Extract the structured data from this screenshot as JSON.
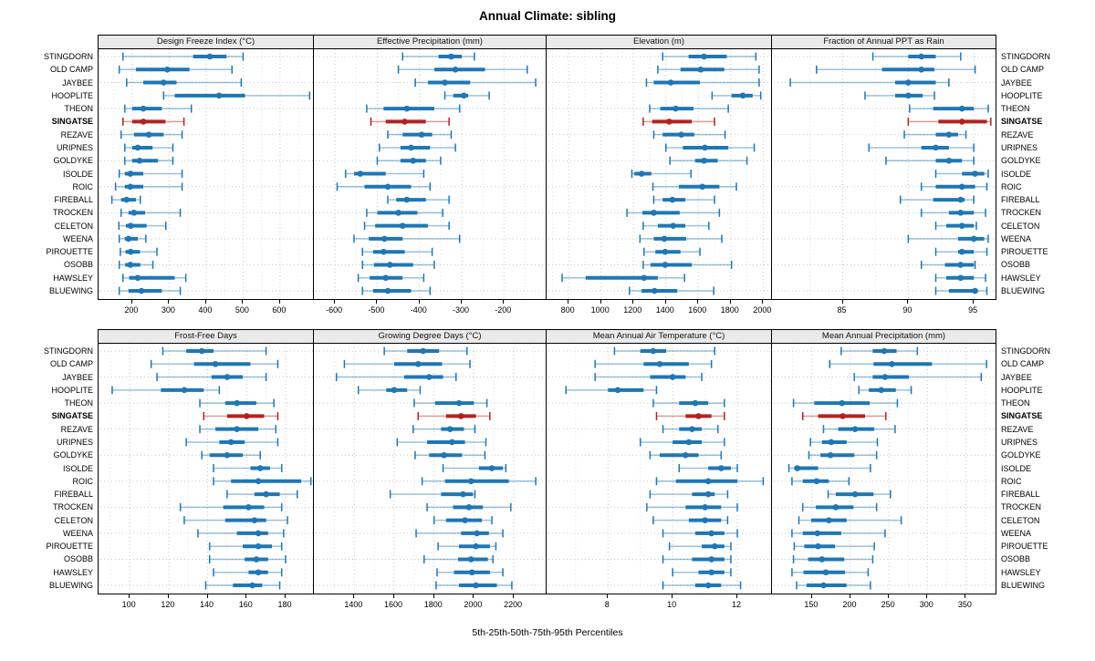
{
  "title": "Annual Climate: sibling",
  "footer": "5th-25th-50th-75th-95th Percentiles",
  "colors": {
    "series": "#1f77b4",
    "highlight": "#b22222",
    "strip_bg": "#eaeaea",
    "grid_major": "#c9c9c9",
    "grid_minor": "#e2e2e2",
    "row_guide": "#c9c9c9"
  },
  "chart_data": {
    "type": "percentile-dotplot",
    "title": "Annual Climate: sibling",
    "caption": "5th-25th-50th-75th-95th Percentiles",
    "percentiles": [
      5,
      25,
      50,
      75,
      95
    ],
    "legend_position": "none",
    "grid": "dotted",
    "sites": [
      "STINGDORN",
      "OLD CAMP",
      "JAYBEE",
      "HOOPLITE",
      "THEON",
      "SINGATSE",
      "REZAVE",
      "URIPNES",
      "GOLDYKE",
      "ISOLDE",
      "ROIC",
      "FIREBALL",
      "TROCKEN",
      "CELETON",
      "WEENA",
      "PIROUETTE",
      "OSOBB",
      "HAWSLEY",
      "BLUEWING"
    ],
    "highlight_site": "SINGATSE",
    "panels": [
      {
        "title": "Design Freeze Index (°C)",
        "xlim": [
          109,
          694
        ],
        "ticks": [
          200,
          300,
          400,
          500,
          600
        ],
        "values": [
          [
            175,
            365,
            410,
            455,
            500
          ],
          [
            165,
            210,
            295,
            355,
            470
          ],
          [
            185,
            230,
            285,
            320,
            495
          ],
          [
            285,
            315,
            435,
            505,
            680
          ],
          [
            180,
            200,
            230,
            280,
            360
          ],
          [
            175,
            200,
            230,
            290,
            340
          ],
          [
            170,
            205,
            245,
            285,
            335
          ],
          [
            180,
            200,
            215,
            255,
            310
          ],
          [
            180,
            200,
            220,
            270,
            310
          ],
          [
            165,
            180,
            195,
            230,
            335
          ],
          [
            155,
            180,
            195,
            230,
            335
          ],
          [
            145,
            170,
            185,
            210,
            222
          ],
          [
            170,
            190,
            205,
            235,
            330
          ],
          [
            164,
            183,
            196,
            239,
            291
          ],
          [
            165,
            180,
            190,
            215,
            237
          ],
          [
            168,
            182,
            196,
            221,
            267
          ],
          [
            165,
            181,
            195,
            222,
            256
          ],
          [
            175,
            192,
            215,
            315,
            345
          ],
          [
            165,
            190,
            225,
            280,
            330
          ]
        ]
      },
      {
        "title": "Effective Precipitation (mm)",
        "xlim": [
          -650,
          -97
        ],
        "ticks": [
          -600,
          -500,
          -400,
          -300,
          -200
        ],
        "values": [
          [
            -440,
            -355,
            -325,
            -300,
            -270
          ],
          [
            -450,
            -365,
            -315,
            -245,
            -145
          ],
          [
            -410,
            -380,
            -340,
            -280,
            -125
          ],
          [
            -340,
            -320,
            -295,
            -285,
            -235
          ],
          [
            -525,
            -485,
            -430,
            -365,
            -305
          ],
          [
            -515,
            -480,
            -435,
            -385,
            -330
          ],
          [
            -475,
            -440,
            -395,
            -370,
            -325
          ],
          [
            -495,
            -445,
            -420,
            -375,
            -315
          ],
          [
            -500,
            -445,
            -415,
            -385,
            -350
          ],
          [
            -575,
            -555,
            -540,
            -480,
            -390
          ],
          [
            -595,
            -530,
            -475,
            -420,
            -375
          ],
          [
            -475,
            -455,
            -430,
            -385,
            -330
          ],
          [
            -525,
            -500,
            -450,
            -405,
            -345
          ],
          [
            -530,
            -505,
            -440,
            -380,
            -330
          ],
          [
            -555,
            -520,
            -483,
            -440,
            -305
          ],
          [
            -535,
            -510,
            -485,
            -435,
            -370
          ],
          [
            -535,
            -508,
            -470,
            -415,
            -365
          ],
          [
            -545,
            -518,
            -480,
            -440,
            -390
          ],
          [
            -535,
            -510,
            -475,
            -420,
            -375
          ]
        ]
      },
      {
        "title": "Elevation (m)",
        "xlim": [
          664,
          2060
        ],
        "ticks": [
          800,
          1000,
          1200,
          1400,
          1600,
          1800,
          2000
        ],
        "values": [
          [
            1380,
            1540,
            1635,
            1775,
            1955
          ],
          [
            1350,
            1490,
            1615,
            1760,
            1975
          ],
          [
            1280,
            1325,
            1430,
            1610,
            1975
          ],
          [
            1685,
            1805,
            1875,
            1935,
            1985
          ],
          [
            1300,
            1365,
            1460,
            1570,
            1785
          ],
          [
            1260,
            1315,
            1420,
            1560,
            1700
          ],
          [
            1325,
            1380,
            1495,
            1575,
            1765
          ],
          [
            1400,
            1505,
            1640,
            1785,
            1945
          ],
          [
            1425,
            1580,
            1635,
            1720,
            1900
          ],
          [
            1190,
            1205,
            1250,
            1310,
            1555
          ],
          [
            1320,
            1480,
            1625,
            1730,
            1835
          ],
          [
            1325,
            1380,
            1440,
            1520,
            1700
          ],
          [
            1160,
            1255,
            1325,
            1485,
            1730
          ],
          [
            1260,
            1350,
            1445,
            1520,
            1665
          ],
          [
            1240,
            1325,
            1390,
            1525,
            1745
          ],
          [
            1265,
            1335,
            1395,
            1490,
            1610
          ],
          [
            1260,
            1305,
            1395,
            1560,
            1805
          ],
          [
            760,
            905,
            1265,
            1350,
            1515
          ],
          [
            1175,
            1250,
            1330,
            1470,
            1695
          ]
        ]
      },
      {
        "title": "Fraction of Annual PPT as Rain",
        "xlim": [
          79.6,
          96.8
        ],
        "ticks": [
          85,
          90,
          95
        ],
        "values": [
          [
            87.3,
            90.0,
            91.0,
            92.1,
            94.0
          ],
          [
            83.0,
            88.0,
            91.0,
            92.0,
            95.1
          ],
          [
            81.0,
            89.0,
            90.0,
            92.1,
            93.1
          ],
          [
            86.7,
            89.0,
            90.0,
            91.1,
            92.0
          ],
          [
            90.1,
            91.9,
            94.1,
            95.0,
            96.1
          ],
          [
            90.0,
            92.3,
            94.1,
            96.0,
            96.3
          ],
          [
            89.7,
            92.1,
            93.1,
            93.8,
            94.4
          ],
          [
            87.0,
            91.0,
            92.1,
            93.1,
            95.0
          ],
          [
            88.3,
            92.1,
            93.1,
            94.1,
            95.0
          ],
          [
            92.1,
            94.1,
            95.1,
            95.8,
            96.1
          ],
          [
            91.0,
            92.1,
            94.1,
            95.1,
            96.0
          ],
          [
            89.4,
            91.9,
            94.0,
            94.3,
            95.0
          ],
          [
            91.0,
            93.1,
            94.0,
            95.0,
            95.9
          ],
          [
            92.1,
            92.9,
            94.1,
            95.0,
            95.2
          ],
          [
            90.0,
            93.8,
            95.0,
            95.8,
            96.1
          ],
          [
            92.1,
            93.8,
            94.1,
            95.0,
            96.0
          ],
          [
            91.0,
            92.8,
            94.0,
            95.0,
            95.1
          ],
          [
            92.1,
            92.9,
            94.0,
            95.0,
            95.9
          ],
          [
            92.1,
            93.1,
            95.1,
            95.2,
            96.0
          ]
        ]
      },
      {
        "title": "Frost-Free Days",
        "xlim": [
          84,
          195
        ],
        "ticks": [
          100,
          120,
          140,
          160,
          180
        ],
        "values": [
          [
            117,
            129,
            137,
            143,
            170
          ],
          [
            111,
            133,
            144,
            162,
            176
          ],
          [
            114,
            142,
            150,
            158,
            170
          ],
          [
            91,
            116,
            128,
            138,
            146
          ],
          [
            136,
            149,
            155,
            165,
            174
          ],
          [
            138,
            150,
            160,
            169,
            176
          ],
          [
            136,
            144,
            155,
            166,
            175
          ],
          [
            129,
            146,
            152,
            159,
            176
          ],
          [
            137,
            141,
            150,
            158,
            167
          ],
          [
            143,
            162,
            167,
            172,
            178
          ],
          [
            143,
            152,
            166,
            188,
            193
          ],
          [
            150,
            164,
            170,
            177,
            186
          ],
          [
            126,
            148,
            161,
            169,
            178
          ],
          [
            128,
            149,
            164,
            170,
            181
          ],
          [
            135,
            155,
            166,
            171,
            179
          ],
          [
            141,
            158,
            166,
            173,
            178
          ],
          [
            141,
            159,
            165,
            171,
            180
          ],
          [
            143,
            161,
            166,
            171,
            178
          ],
          [
            139,
            153,
            163,
            168,
            177
          ]
        ]
      },
      {
        "title": "Growing Degree Days (°C)",
        "xlim": [
          1197,
          2369
        ],
        "ticks": [
          1400,
          1600,
          1800,
          2000,
          2200
        ],
        "values": [
          [
            1550,
            1665,
            1745,
            1825,
            1965
          ],
          [
            1350,
            1600,
            1720,
            1840,
            1980
          ],
          [
            1310,
            1650,
            1775,
            1845,
            1910
          ],
          [
            1420,
            1560,
            1600,
            1665,
            1730
          ],
          [
            1700,
            1805,
            1925,
            2000,
            2065
          ],
          [
            1720,
            1860,
            1935,
            2010,
            2080
          ],
          [
            1695,
            1835,
            1880,
            1950,
            2005
          ],
          [
            1615,
            1765,
            1890,
            1955,
            2060
          ],
          [
            1705,
            1775,
            1850,
            1940,
            2055
          ],
          [
            1845,
            2025,
            2090,
            2145,
            2160
          ],
          [
            1740,
            1855,
            1985,
            2175,
            2310
          ],
          [
            1580,
            1835,
            1945,
            1995,
            2005
          ],
          [
            1765,
            1895,
            1975,
            2045,
            2185
          ],
          [
            1800,
            1860,
            1955,
            2040,
            2090
          ],
          [
            1710,
            1935,
            2015,
            2075,
            2145
          ],
          [
            1820,
            1925,
            2010,
            2080,
            2110
          ],
          [
            1750,
            1920,
            1985,
            2070,
            2095
          ],
          [
            1815,
            1900,
            1990,
            2080,
            2145
          ],
          [
            1810,
            1925,
            2010,
            2115,
            2190
          ]
        ]
      },
      {
        "title": "Mean Annual Air Temperature (°C)",
        "xlim": [
          6.1,
          13.1
        ],
        "ticks": [
          8,
          10,
          12
        ],
        "values": [
          [
            8.2,
            9.0,
            9.4,
            9.8,
            11.3
          ],
          [
            7.6,
            9.1,
            9.6,
            10.5,
            11.2
          ],
          [
            7.6,
            9.3,
            10.0,
            10.4,
            10.9
          ],
          [
            6.7,
            8.0,
            8.3,
            9.1,
            9.5
          ],
          [
            9.4,
            10.2,
            10.7,
            11.1,
            11.6
          ],
          [
            9.5,
            10.4,
            10.8,
            11.2,
            11.6
          ],
          [
            9.7,
            10.2,
            10.6,
            10.9,
            11.4
          ],
          [
            9.0,
            10.0,
            10.5,
            10.9,
            11.6
          ],
          [
            9.3,
            9.6,
            10.4,
            10.8,
            11.5
          ],
          [
            10.2,
            11.1,
            11.5,
            11.8,
            12.0
          ],
          [
            9.5,
            10.1,
            11.1,
            12.0,
            12.8
          ],
          [
            9.3,
            10.6,
            11.1,
            11.3,
            11.7
          ],
          [
            9.2,
            10.4,
            11.0,
            11.5,
            12.0
          ],
          [
            9.4,
            10.5,
            11.0,
            11.5,
            11.7
          ],
          [
            9.7,
            10.7,
            11.2,
            11.6,
            12.0
          ],
          [
            9.9,
            10.9,
            11.3,
            11.6,
            11.8
          ],
          [
            9.7,
            10.6,
            11.2,
            11.6,
            11.8
          ],
          [
            10.0,
            10.8,
            11.2,
            11.6,
            11.8
          ],
          [
            9.7,
            10.7,
            11.1,
            11.5,
            12.1
          ]
        ]
      },
      {
        "title": "Mean Annual Precipitation (mm)",
        "xlim": [
          98,
          391
        ],
        "ticks": [
          150,
          200,
          250,
          300,
          350
        ],
        "values": [
          [
            188,
            229,
            244,
            260,
            287
          ],
          [
            173,
            230,
            254,
            306,
            377
          ],
          [
            205,
            229,
            245,
            276,
            370
          ],
          [
            211,
            224,
            240,
            259,
            279
          ],
          [
            126,
            153,
            189,
            225,
            261
          ],
          [
            138,
            158,
            190,
            219,
            246
          ],
          [
            165,
            184,
            206,
            231,
            258
          ],
          [
            148,
            163,
            175,
            195,
            235
          ],
          [
            146,
            161,
            174,
            205,
            234
          ],
          [
            120,
            127,
            131,
            158,
            226
          ],
          [
            124,
            138,
            156,
            172,
            198
          ],
          [
            171,
            181,
            206,
            230,
            252
          ],
          [
            138,
            155,
            181,
            204,
            234
          ],
          [
            133,
            149,
            172,
            195,
            266
          ],
          [
            124,
            138,
            157,
            188,
            245
          ],
          [
            127,
            140,
            158,
            180,
            231
          ],
          [
            126,
            145,
            163,
            192,
            229
          ],
          [
            124,
            139,
            168,
            193,
            223
          ],
          [
            130,
            143,
            165,
            195,
            226
          ]
        ]
      }
    ]
  }
}
